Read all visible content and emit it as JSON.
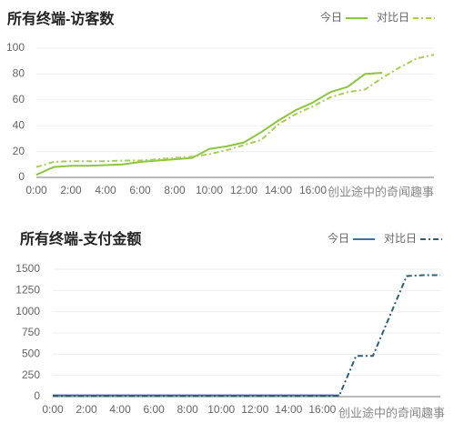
{
  "chart_data": [
    {
      "type": "line",
      "title": "所有终端-访客数",
      "annotation": "创业途中的奇闻趣事",
      "x": [
        0,
        1,
        2,
        3,
        4,
        5,
        6,
        7,
        8,
        9,
        10,
        11,
        12,
        13,
        14,
        15,
        16,
        17,
        18,
        19,
        20,
        21,
        22,
        23
      ],
      "xlim": [
        0,
        23
      ],
      "xticks": [
        {
          "value": 0,
          "label": "0:00"
        },
        {
          "value": 2,
          "label": "2:00"
        },
        {
          "value": 4,
          "label": "4:00"
        },
        {
          "value": 6,
          "label": "6:00"
        },
        {
          "value": 8,
          "label": "8:00"
        },
        {
          "value": 10,
          "label": "10:00"
        },
        {
          "value": 12,
          "label": "12:00"
        },
        {
          "value": 14,
          "label": "14:00"
        },
        {
          "value": 16,
          "label": "16:00"
        }
      ],
      "ylim": [
        0,
        100
      ],
      "yticks": [
        0,
        20,
        40,
        60,
        80,
        100
      ],
      "grid": true,
      "legend": "top-right",
      "series": [
        {
          "name": "今日",
          "color": "#8cc63f",
          "dash": "solid",
          "values": [
            2,
            8,
            9,
            9,
            9.5,
            10,
            12,
            13,
            14,
            15,
            22,
            24,
            27,
            35,
            44,
            52,
            58,
            66,
            70,
            80,
            81,
            null,
            null,
            null
          ]
        },
        {
          "name": "对比日",
          "color": "#a6cf52",
          "dash": "dashdot",
          "values": [
            8,
            12,
            12.5,
            12.5,
            12.5,
            13,
            13,
            14,
            15,
            16,
            18,
            21,
            25,
            29,
            41,
            49,
            55,
            62,
            66,
            68,
            77,
            85,
            92,
            95
          ]
        }
      ]
    },
    {
      "type": "line",
      "title": "所有终端-支付金额",
      "annotation": "创业途中的奇闻趣事",
      "x": [
        0,
        1,
        2,
        3,
        4,
        5,
        6,
        7,
        8,
        9,
        10,
        11,
        12,
        13,
        14,
        15,
        16,
        17,
        18,
        19,
        20,
        21,
        22,
        23
      ],
      "xlim": [
        0,
        23
      ],
      "xticks": [
        {
          "value": 0,
          "label": "0:00"
        },
        {
          "value": 2,
          "label": "2:00"
        },
        {
          "value": 4,
          "label": "4:00"
        },
        {
          "value": 6,
          "label": "6:00"
        },
        {
          "value": 8,
          "label": "8:00"
        },
        {
          "value": 10,
          "label": "10:00"
        },
        {
          "value": 12,
          "label": "12:00"
        },
        {
          "value": 14,
          "label": "14:00"
        },
        {
          "value": 16,
          "label": "16:00"
        }
      ],
      "ylim": [
        0,
        1500
      ],
      "yticks": [
        0,
        250,
        500,
        750,
        1000,
        1250,
        1500
      ],
      "grid": true,
      "legend": "top-right",
      "series": [
        {
          "name": "今日",
          "color": "#3d6fa3",
          "dash": "solid",
          "values": [
            15,
            15,
            15,
            15,
            15,
            15,
            15,
            15,
            15,
            15,
            15,
            15,
            15,
            15,
            15,
            15,
            15,
            15,
            null,
            null,
            null,
            null,
            null,
            null
          ]
        },
        {
          "name": "对比日",
          "color": "#2f5f73",
          "dash": "dashdot",
          "values": [
            10,
            10,
            10,
            10,
            10,
            10,
            10,
            10,
            10,
            10,
            10,
            10,
            10,
            10,
            10,
            10,
            10,
            10,
            480,
            480,
            950,
            1420,
            1430,
            1430
          ]
        }
      ]
    }
  ]
}
